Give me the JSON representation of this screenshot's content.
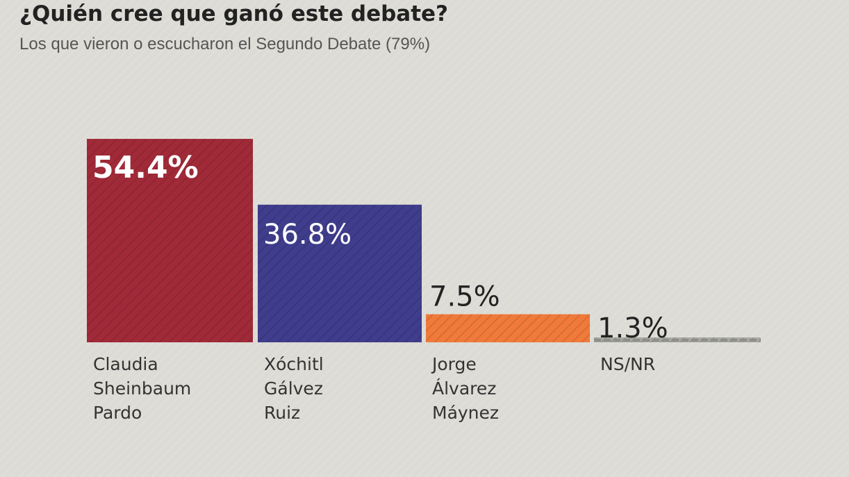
{
  "chart_data": {
    "type": "bar",
    "title": "¿Quién cree que ganó este debate?",
    "subtitle": "Los que vieron o escucharon el Segundo Debate (79%)",
    "categories": [
      [
        "Claudia",
        "Sheinbaum",
        "Pardo"
      ],
      [
        "Xóchitl",
        "Gálvez",
        "Ruiz"
      ],
      [
        "Jorge",
        "Álvarez",
        "Máynez"
      ],
      [
        "NS/NR"
      ]
    ],
    "values": [
      54.4,
      36.8,
      7.5,
      1.3
    ],
    "value_labels": [
      "54.4%",
      "36.8%",
      "7.5%",
      "1.3%"
    ],
    "colors": [
      "#a12a38",
      "#3f3d8c",
      "#f07a3a",
      "#a8a8a4"
    ],
    "label_inside": [
      true,
      true,
      false,
      false
    ],
    "label_color_inside": "#ffffff",
    "label_color_outside": "#222222",
    "ylim": [
      0,
      54.4
    ],
    "grid": false,
    "legend": "none"
  }
}
